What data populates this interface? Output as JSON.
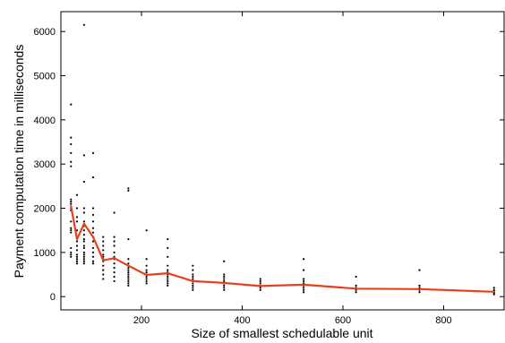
{
  "chart_data": {
    "type": "scatter",
    "title": "",
    "xlabel": "Size of smallest schedulable unit",
    "ylabel": "Payment computation time in milliseconds",
    "xlim": [
      40,
      920
    ],
    "ylim": [
      -300,
      6450
    ],
    "x_ticks": [
      200,
      400,
      600,
      800
    ],
    "y_ticks": [
      0,
      1000,
      2000,
      3000,
      4000,
      5000,
      6000
    ],
    "grid": false,
    "legend": "none",
    "colors": {
      "points": "#000000",
      "line": "#e8401c",
      "axes": "#000000"
    },
    "series": [
      {
        "type": "scatter",
        "points": [
          [
            60,
            4350
          ],
          [
            60,
            3600
          ],
          [
            60,
            3450
          ],
          [
            60,
            3250
          ],
          [
            60,
            3050
          ],
          [
            60,
            2950
          ],
          [
            60,
            2200
          ],
          [
            60,
            2150
          ],
          [
            60,
            2100
          ],
          [
            60,
            2000
          ],
          [
            60,
            1950
          ],
          [
            60,
            1700
          ],
          [
            60,
            1550
          ],
          [
            60,
            1500
          ],
          [
            60,
            1450
          ],
          [
            60,
            1100
          ],
          [
            60,
            1000
          ],
          [
            60,
            950
          ],
          [
            60,
            900
          ],
          [
            72,
            2300
          ],
          [
            72,
            2000
          ],
          [
            72,
            1800
          ],
          [
            72,
            1700
          ],
          [
            72,
            1500
          ],
          [
            72,
            1350
          ],
          [
            72,
            1250
          ],
          [
            72,
            1150
          ],
          [
            72,
            1050
          ],
          [
            72,
            950
          ],
          [
            72,
            900
          ],
          [
            72,
            850
          ],
          [
            72,
            800
          ],
          [
            72,
            750
          ],
          [
            86,
            6150
          ],
          [
            86,
            3200
          ],
          [
            86,
            2600
          ],
          [
            86,
            2000
          ],
          [
            86,
            1900
          ],
          [
            86,
            1700
          ],
          [
            86,
            1600
          ],
          [
            86,
            1500
          ],
          [
            86,
            1400
          ],
          [
            86,
            1300
          ],
          [
            86,
            1250
          ],
          [
            86,
            1150
          ],
          [
            86,
            1100
          ],
          [
            86,
            1000
          ],
          [
            86,
            950
          ],
          [
            86,
            900
          ],
          [
            86,
            850
          ],
          [
            86,
            800
          ],
          [
            86,
            750
          ],
          [
            104,
            3250
          ],
          [
            104,
            2700
          ],
          [
            104,
            2000
          ],
          [
            104,
            1850
          ],
          [
            104,
            1700
          ],
          [
            104,
            1550
          ],
          [
            104,
            1450
          ],
          [
            104,
            1350
          ],
          [
            104,
            1250
          ],
          [
            104,
            1100
          ],
          [
            104,
            1000
          ],
          [
            104,
            900
          ],
          [
            104,
            800
          ],
          [
            104,
            750
          ],
          [
            124,
            1350
          ],
          [
            124,
            1250
          ],
          [
            124,
            1150
          ],
          [
            124,
            1050
          ],
          [
            124,
            950
          ],
          [
            124,
            900
          ],
          [
            124,
            850
          ],
          [
            124,
            800
          ],
          [
            124,
            700
          ],
          [
            124,
            600
          ],
          [
            124,
            500
          ],
          [
            124,
            400
          ],
          [
            146,
            1900
          ],
          [
            146,
            1350
          ],
          [
            146,
            1250
          ],
          [
            146,
            1150
          ],
          [
            146,
            1000
          ],
          [
            146,
            900
          ],
          [
            146,
            850
          ],
          [
            146,
            750
          ],
          [
            146,
            650
          ],
          [
            146,
            550
          ],
          [
            146,
            450
          ],
          [
            146,
            350
          ],
          [
            174,
            2450
          ],
          [
            174,
            2400
          ],
          [
            174,
            1300
          ],
          [
            174,
            850
          ],
          [
            174,
            750
          ],
          [
            174,
            700
          ],
          [
            174,
            650
          ],
          [
            174,
            600
          ],
          [
            174,
            550
          ],
          [
            174,
            500
          ],
          [
            174,
            450
          ],
          [
            174,
            400
          ],
          [
            174,
            350
          ],
          [
            174,
            300
          ],
          [
            174,
            250
          ],
          [
            210,
            1500
          ],
          [
            210,
            850
          ],
          [
            210,
            700
          ],
          [
            210,
            600
          ],
          [
            210,
            550
          ],
          [
            210,
            500
          ],
          [
            210,
            450
          ],
          [
            210,
            400
          ],
          [
            210,
            350
          ],
          [
            210,
            300
          ],
          [
            252,
            1300
          ],
          [
            252,
            1100
          ],
          [
            252,
            900
          ],
          [
            252,
            700
          ],
          [
            252,
            600
          ],
          [
            252,
            550
          ],
          [
            252,
            500
          ],
          [
            252,
            450
          ],
          [
            252,
            400
          ],
          [
            252,
            350
          ],
          [
            252,
            300
          ],
          [
            252,
            250
          ],
          [
            302,
            700
          ],
          [
            302,
            600
          ],
          [
            302,
            500
          ],
          [
            302,
            450
          ],
          [
            302,
            400
          ],
          [
            302,
            350
          ],
          [
            302,
            300
          ],
          [
            302,
            250
          ],
          [
            302,
            200
          ],
          [
            302,
            150
          ],
          [
            364,
            800
          ],
          [
            364,
            500
          ],
          [
            364,
            450
          ],
          [
            364,
            400
          ],
          [
            364,
            350
          ],
          [
            364,
            300
          ],
          [
            364,
            250
          ],
          [
            364,
            200
          ],
          [
            364,
            150
          ],
          [
            436,
            400
          ],
          [
            436,
            350
          ],
          [
            436,
            300
          ],
          [
            436,
            250
          ],
          [
            436,
            200
          ],
          [
            436,
            150
          ],
          [
            522,
            850
          ],
          [
            522,
            600
          ],
          [
            522,
            400
          ],
          [
            522,
            350
          ],
          [
            522,
            300
          ],
          [
            522,
            250
          ],
          [
            522,
            200
          ],
          [
            522,
            150
          ],
          [
            522,
            100
          ],
          [
            626,
            450
          ],
          [
            626,
            250
          ],
          [
            626,
            200
          ],
          [
            626,
            150
          ],
          [
            626,
            100
          ],
          [
            752,
            600
          ],
          [
            752,
            250
          ],
          [
            752,
            200
          ],
          [
            752,
            150
          ],
          [
            752,
            100
          ],
          [
            900,
            200
          ],
          [
            900,
            150
          ],
          [
            900,
            120
          ],
          [
            900,
            100
          ],
          [
            900,
            80
          ],
          [
            900,
            50
          ]
        ]
      },
      {
        "type": "line",
        "points": [
          [
            60,
            2050
          ],
          [
            72,
            1300
          ],
          [
            86,
            1650
          ],
          [
            104,
            1350
          ],
          [
            124,
            820
          ],
          [
            146,
            870
          ],
          [
            174,
            700
          ],
          [
            210,
            490
          ],
          [
            252,
            530
          ],
          [
            302,
            350
          ],
          [
            364,
            310
          ],
          [
            436,
            240
          ],
          [
            522,
            270
          ],
          [
            626,
            180
          ],
          [
            752,
            170
          ],
          [
            900,
            110
          ]
        ]
      }
    ]
  }
}
